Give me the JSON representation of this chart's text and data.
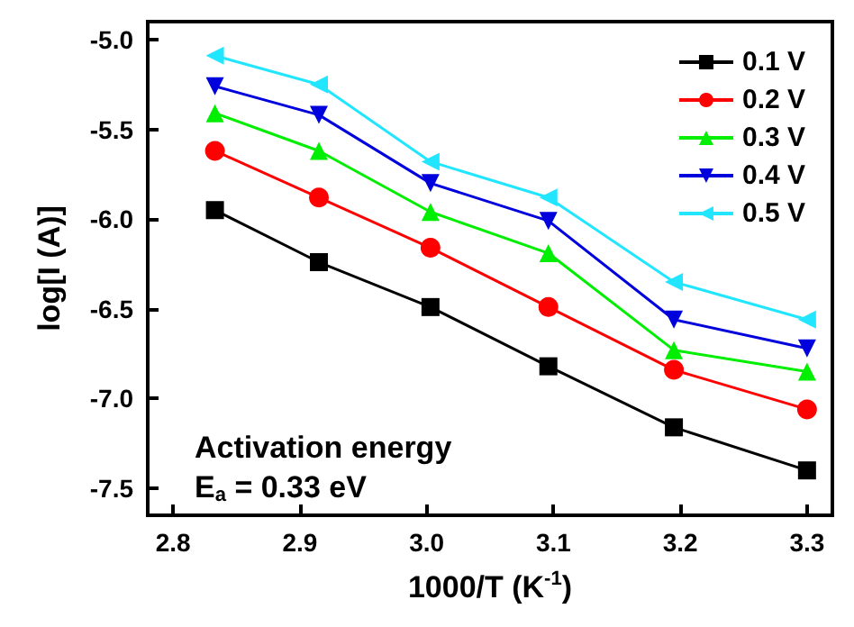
{
  "chart_data": {
    "type": "line",
    "xlabel": "1000/T (K$^{-1}$)",
    "ylabel": "log[I (A)]",
    "x": [
      2.833,
      2.915,
      3.003,
      3.096,
      3.195,
      3.3
    ],
    "xlim": [
      2.78,
      3.32
    ],
    "xticks": [
      2.8,
      2.9,
      {
        "value": 3,
        "label": "3.0"
      },
      3.1,
      3.2,
      3.3
    ],
    "ylim": [
      -7.65,
      -4.9
    ],
    "yticks": [
      -7.5,
      {
        "value": -7,
        "label": "-7.0"
      },
      -6.5,
      {
        "value": -6,
        "label": "-6.0"
      },
      -5.5,
      {
        "value": -5,
        "label": "-5.0"
      }
    ],
    "grid": false,
    "legend": "top right",
    "series": [
      {
        "name": "0.1 V",
        "color": "#000000",
        "marker": "square",
        "values": [
          -5.95,
          -6.24,
          -6.49,
          -6.82,
          -7.16,
          -7.4
        ]
      },
      {
        "name": "0.2 V",
        "color": "#ff0000",
        "marker": "circle",
        "values": [
          -5.62,
          -5.88,
          -6.16,
          -6.49,
          -6.84,
          -7.06
        ]
      },
      {
        "name": "0.3 V",
        "color": "#00ee00",
        "marker": "triangle",
        "values": [
          -5.41,
          -5.62,
          -5.96,
          -6.19,
          -6.73,
          -6.85
        ]
      },
      {
        "name": "0.4 V",
        "color": "#0000dd",
        "marker": "triangle-down",
        "values": [
          -5.26,
          -5.42,
          -5.8,
          -6.01,
          -6.56,
          -6.72
        ]
      },
      {
        "name": "0.5 V",
        "color": "#22e6ff",
        "marker": "triangle-left",
        "values": [
          -5.09,
          -5.25,
          -5.68,
          -5.88,
          -6.35,
          -6.56
        ]
      }
    ],
    "annotations": [
      "Activation energy",
      "E$_{a}$ = 0.33 eV"
    ]
  }
}
